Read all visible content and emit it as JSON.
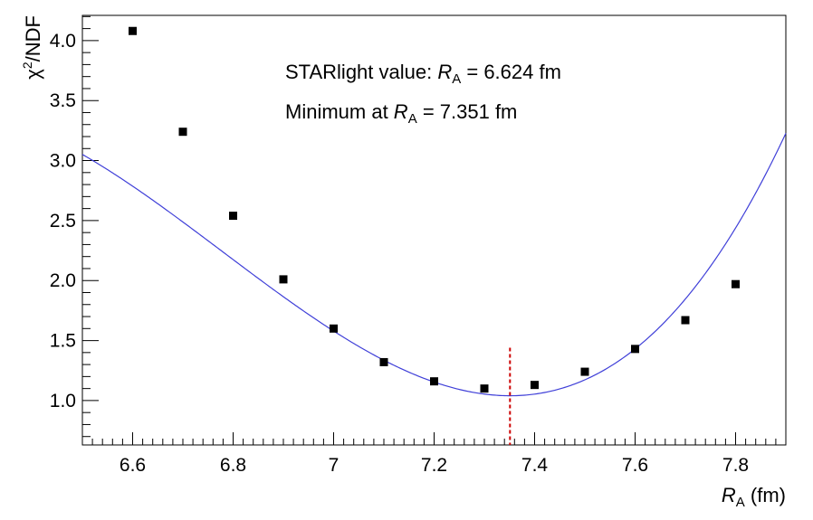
{
  "chart_data": {
    "type": "scatter",
    "xlabel_main": "R",
    "xlabel_sub": "A",
    "xlabel_unit": " (fm)",
    "ylabel_main": "χ",
    "ylabel_sup": "2",
    "ylabel_rest": "/NDF",
    "xlim": [
      6.5,
      7.9
    ],
    "ylim": [
      0.63,
      4.21
    ],
    "x_ticks": [
      6.6,
      6.8,
      7.0,
      7.2,
      7.4,
      7.6,
      7.8
    ],
    "x_tick_labels": [
      "6.6",
      "6.8",
      "7",
      "7.2",
      "7.4",
      "7.6",
      "7.8"
    ],
    "y_ticks": [
      1.0,
      1.5,
      2.0,
      2.5,
      3.0,
      3.5,
      4.0
    ],
    "y_tick_labels": [
      "1.0",
      "1.5",
      "2.0",
      "2.5",
      "3.0",
      "3.5",
      "4.0"
    ],
    "series": [
      {
        "x": [
          6.6,
          6.7,
          6.8,
          6.9,
          7.0,
          7.1,
          7.2,
          7.3,
          7.4,
          7.5,
          7.6,
          7.7,
          7.8
        ],
        "y": [
          4.08,
          3.24,
          2.54,
          2.01,
          1.6,
          1.32,
          1.16,
          1.1,
          1.13,
          1.24,
          1.43,
          1.67,
          1.97
        ],
        "color": "#000000"
      }
    ],
    "fit_curve": {
      "color": "#3f3fd8",
      "vertex_x": 7.351,
      "vertex_y": 1.04,
      "a": 5.5,
      "b": 3.2
    },
    "minimum_marker": {
      "x": 7.351,
      "y_top": 1.44,
      "color": "#cc0000"
    },
    "annotations": [
      {
        "prefix": "STARlight value: ",
        "var": "R",
        "sub": "A",
        "suffix": " = 6.624 fm"
      },
      {
        "prefix": "Minimum at ",
        "var": "R",
        "sub": "A",
        "suffix": " = 7.351 fm"
      }
    ]
  }
}
